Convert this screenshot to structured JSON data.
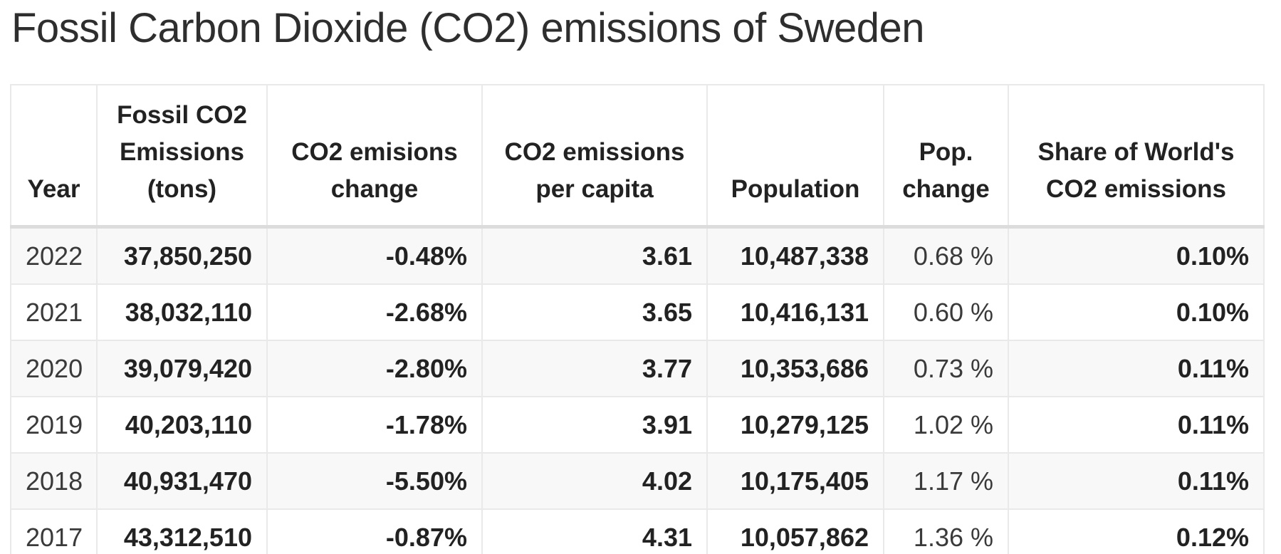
{
  "page": {
    "title": "Fossil Carbon Dioxide (CO2) emissions of Sweden"
  },
  "colors": {
    "title_text": "#2e2e2e",
    "body_text": "#333333",
    "stripe_row_background": "#f8f8f8",
    "cell_border": "#e9e9e9",
    "header_bottom_divider": "#dcdcdc"
  },
  "table": {
    "columns": [
      {
        "key": "year",
        "label": "Year"
      },
      {
        "key": "emissions",
        "label": "Fossil CO2 Emissions (tons)"
      },
      {
        "key": "change",
        "label": "CO2 emisions change"
      },
      {
        "key": "per_capita",
        "label": "CO2 emissions per capita"
      },
      {
        "key": "population",
        "label": "Population"
      },
      {
        "key": "pop_change",
        "label": "Pop. change"
      },
      {
        "key": "share",
        "label": "Share of World's CO2 emissions"
      }
    ],
    "rows": [
      {
        "year": "2022",
        "emissions": "37,850,250",
        "change": "-0.48%",
        "per_capita": "3.61",
        "population": "10,487,338",
        "pop_change": "0.68 %",
        "share": "0.10%"
      },
      {
        "year": "2021",
        "emissions": "38,032,110",
        "change": "-2.68%",
        "per_capita": "3.65",
        "population": "10,416,131",
        "pop_change": "0.60 %",
        "share": "0.10%"
      },
      {
        "year": "2020",
        "emissions": "39,079,420",
        "change": "-2.80%",
        "per_capita": "3.77",
        "population": "10,353,686",
        "pop_change": "0.73 %",
        "share": "0.11%"
      },
      {
        "year": "2019",
        "emissions": "40,203,110",
        "change": "-1.78%",
        "per_capita": "3.91",
        "population": "10,279,125",
        "pop_change": "1.02 %",
        "share": "0.11%"
      },
      {
        "year": "2018",
        "emissions": "40,931,470",
        "change": "-5.50%",
        "per_capita": "4.02",
        "population": "10,175,405",
        "pop_change": "1.17 %",
        "share": "0.11%"
      },
      {
        "year": "2017",
        "emissions": "43,312,510",
        "change": "-0.87%",
        "per_capita": "4.31",
        "population": "10,057,862",
        "pop_change": "1.36 %",
        "share": "0.12%"
      }
    ]
  }
}
